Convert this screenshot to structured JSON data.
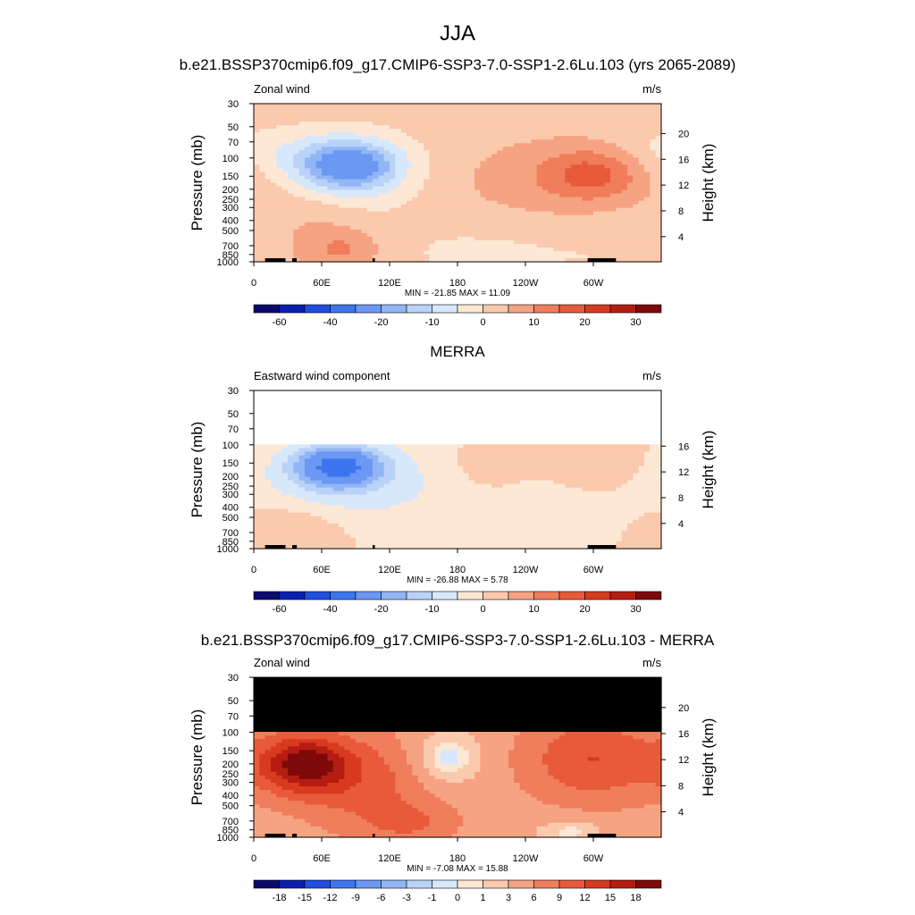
{
  "figure": {
    "season": "JJA",
    "colors": {
      "wind_palette": [
        "#0a0a6e",
        "#0d1fb0",
        "#1f4ee0",
        "#3d74f0",
        "#6a98f2",
        "#92b6f5",
        "#b9d2f8",
        "#d8e8fb",
        "#fde7d5",
        "#fbc9ad",
        "#f6a383",
        "#f07d5b",
        "#e85a39",
        "#d83a1f",
        "#b51d12",
        "#7d0a08"
      ],
      "diff_palette": [
        "#0a0a6e",
        "#0d1fb0",
        "#1f4ee0",
        "#3d74f0",
        "#6a98f2",
        "#92b6f5",
        "#b9d2f8",
        "#d8e8fb",
        "#fde7d5",
        "#fbc9ad",
        "#f6a383",
        "#f07d5b",
        "#e85a39",
        "#d83a1f",
        "#b51d12",
        "#7d0a08"
      ],
      "missing": "#000000"
    }
  },
  "chart_data": [
    {
      "type": "heatmap",
      "title": "b.e21.BSSP370cmip6.f09_g17.CMIP6-SSP3-7.0-SSP1-2.6Lu.103 (yrs 2065-2089)",
      "left_label": "Zonal wind",
      "units": "m/s",
      "ylabel": "Pressure (mb)",
      "y2label": "Height (km)",
      "pressure_ticks": [
        "30",
        "50",
        "70",
        "100",
        "150",
        "200",
        "250",
        "300",
        "400",
        "500",
        "700",
        "850",
        "1000"
      ],
      "height_ticks": [
        "20",
        "16",
        "12",
        "8",
        "4"
      ],
      "lon_ticks": [
        "0",
        "60E",
        "120E",
        "180",
        "120W",
        "60W"
      ],
      "stats": "MIN = -21.85  MAX =  11.09",
      "colorbar_labels": [
        "-60",
        "-40",
        "-20",
        "-10",
        "0",
        "10",
        "20",
        "30"
      ],
      "levels": [
        -70,
        -60,
        -50,
        -40,
        -30,
        -20,
        -15,
        -10,
        -5,
        0,
        5,
        10,
        15,
        20,
        25,
        30,
        35
      ],
      "features": [
        {
          "lon": 85,
          "p": 120,
          "amp": -22,
          "wl": 28,
          "wp": 0.35
        },
        {
          "lon": 80,
          "p": 160,
          "amp": -8,
          "wl": 45,
          "wp": 0.6
        },
        {
          "lon": 40,
          "p": 90,
          "amp": -6,
          "wl": 60,
          "wp": 0.4
        },
        {
          "lon": 300,
          "p": 140,
          "amp": 11,
          "wl": 30,
          "wp": 0.4
        },
        {
          "lon": 270,
          "p": 160,
          "amp": 6,
          "wl": 70,
          "wp": 0.7
        },
        {
          "lon": 60,
          "p": 500,
          "amp": 5,
          "wl": 35,
          "wp": 0.8
        },
        {
          "lon": 80,
          "p": 750,
          "amp": 6,
          "wl": 22,
          "wp": 0.25
        },
        {
          "lon": 200,
          "p": 800,
          "amp": -3,
          "wl": 60,
          "wp": 0.5
        },
        {
          "lon": 330,
          "p": 700,
          "amp": -2,
          "wl": 50,
          "wp": 0.6
        }
      ],
      "base": 2,
      "missing_above_hpa": null
    },
    {
      "type": "heatmap",
      "title": "MERRA",
      "left_label": "Eastward wind component",
      "units": "m/s",
      "ylabel": "Pressure (mb)",
      "y2label": "Height (km)",
      "pressure_ticks": [
        "30",
        "50",
        "70",
        "100",
        "150",
        "200",
        "250",
        "300",
        "400",
        "500",
        "700",
        "850",
        "1000"
      ],
      "height_ticks": [
        "16",
        "12",
        "8",
        "4"
      ],
      "lon_ticks": [
        "0",
        "60E",
        "120E",
        "180",
        "120W",
        "60W"
      ],
      "stats": "MIN = -26.88  MAX =   5.78",
      "colorbar_labels": [
        "-60",
        "-40",
        "-20",
        "-10",
        "0",
        "10",
        "20",
        "30"
      ],
      "levels": [
        -70,
        -60,
        -50,
        -40,
        -30,
        -20,
        -15,
        -10,
        -5,
        0,
        5,
        10,
        15,
        20,
        25,
        30,
        35
      ],
      "features": [
        {
          "lon": 75,
          "p": 160,
          "amp": -27,
          "wl": 25,
          "wp": 0.3
        },
        {
          "lon": 70,
          "p": 200,
          "amp": -10,
          "wl": 50,
          "wp": 0.6
        },
        {
          "lon": 190,
          "p": 400,
          "amp": -4,
          "wl": 90,
          "wp": 1.2
        },
        {
          "lon": 210,
          "p": 160,
          "amp": 5,
          "wl": 25,
          "wp": 0.4
        },
        {
          "lon": 300,
          "p": 140,
          "amp": 5,
          "wl": 30,
          "wp": 0.4
        },
        {
          "lon": 40,
          "p": 700,
          "amp": 5,
          "wl": 30,
          "wp": 0.5
        }
      ],
      "base": 1,
      "missing_above_hpa": 100
    },
    {
      "type": "heatmap",
      "title": "b.e21.BSSP370cmip6.f09_g17.CMIP6-SSP3-7.0-SSP1-2.6Lu.103 - MERRA",
      "left_label": "Zonal wind",
      "units": "m/s",
      "ylabel": "Pressure (mb)",
      "y2label": "Height (km)",
      "pressure_ticks": [
        "30",
        "50",
        "70",
        "100",
        "150",
        "200",
        "250",
        "300",
        "400",
        "500",
        "700",
        "850",
        "1000"
      ],
      "height_ticks": [
        "20",
        "16",
        "12",
        "8",
        "4"
      ],
      "lon_ticks": [
        "0",
        "60E",
        "120E",
        "180",
        "120W",
        "60W"
      ],
      "stats": "MIN = -7.08  MAX =  15.88",
      "colorbar_labels": [
        "-18",
        "-15",
        "-12",
        "-9",
        "-6",
        "-3",
        "-1",
        "0",
        "1",
        "3",
        "6",
        "9",
        "12",
        "15",
        "18"
      ],
      "levels": [
        -21,
        -18,
        -15,
        -12,
        -9,
        -6,
        -3,
        -1,
        0,
        1,
        3,
        6,
        9,
        12,
        15,
        18,
        21
      ],
      "features": [
        {
          "lon": 45,
          "p": 200,
          "amp": 14,
          "wl": 28,
          "wp": 0.45
        },
        {
          "lon": 100,
          "p": 300,
          "amp": 6,
          "wl": 45,
          "wp": 0.8
        },
        {
          "lon": 300,
          "p": 180,
          "amp": 8,
          "wl": 45,
          "wp": 0.7
        },
        {
          "lon": 170,
          "p": 180,
          "amp": -6,
          "wl": 22,
          "wp": 0.4
        },
        {
          "lon": 280,
          "p": 880,
          "amp": -4,
          "wl": 20,
          "wp": 0.2
        },
        {
          "lon": 140,
          "p": 750,
          "amp": 4,
          "wl": 30,
          "wp": 0.3
        }
      ],
      "base": 4,
      "missing_above_hpa": 100
    }
  ]
}
